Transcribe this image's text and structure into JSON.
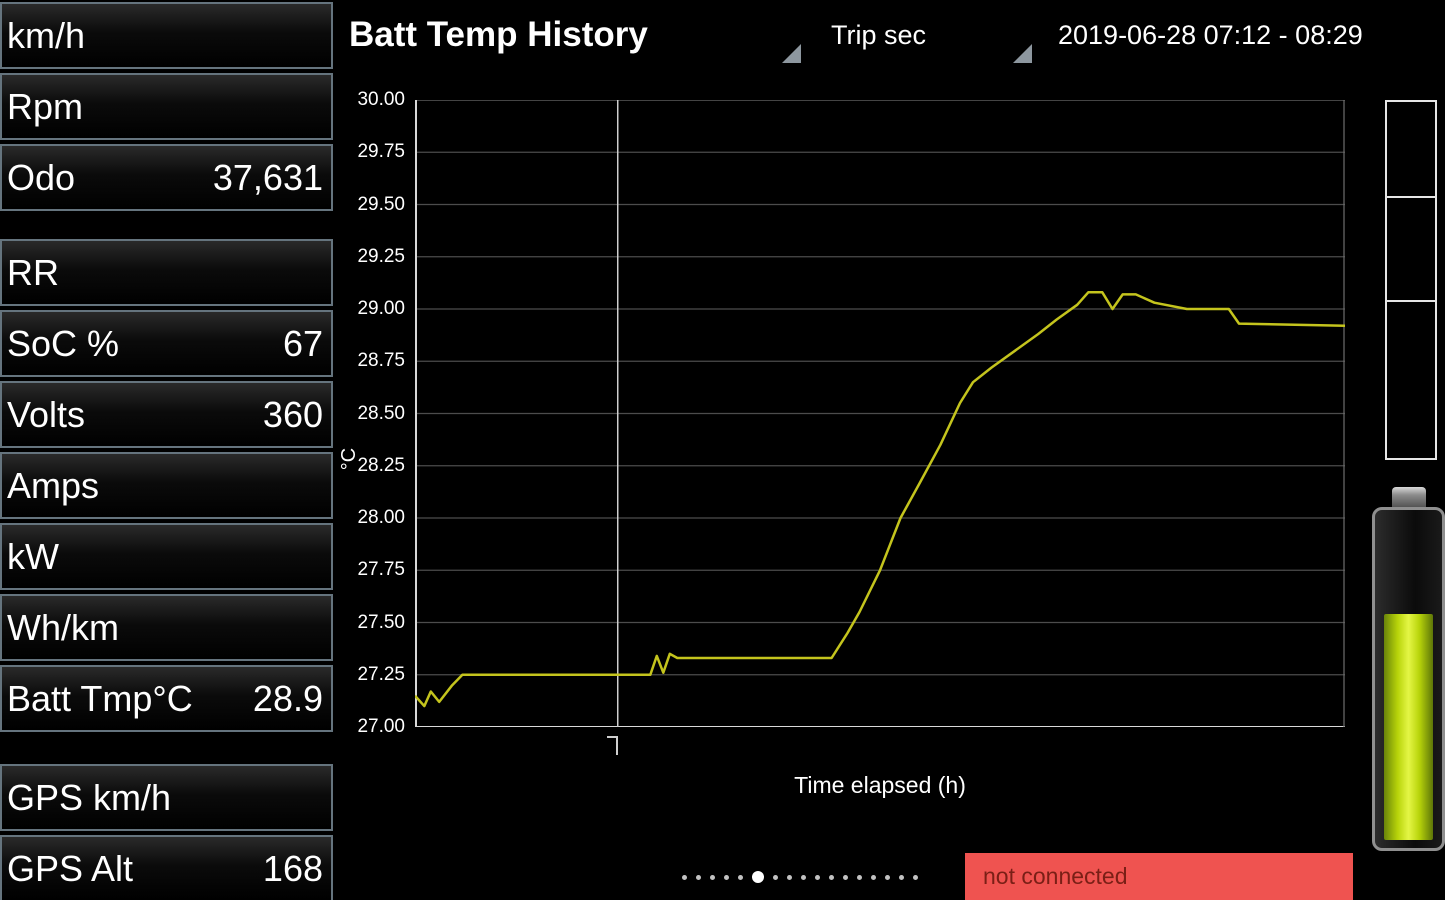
{
  "header": {
    "title": "Batt Temp History",
    "trip_label": "Trip sec",
    "date_range": "2019-06-28 07:12 - 08:29"
  },
  "sidebar": {
    "groups": [
      {
        "rows": [
          {
            "label": "km/h",
            "value": ""
          },
          {
            "label": "Rpm",
            "value": ""
          },
          {
            "label": "Odo",
            "value": "37,631"
          }
        ]
      },
      {
        "rows": [
          {
            "label": "RR",
            "value": ""
          },
          {
            "label": "SoC %",
            "value": "67"
          },
          {
            "label": "Volts",
            "value": "360"
          },
          {
            "label": "Amps",
            "value": ""
          },
          {
            "label": "kW",
            "value": ""
          },
          {
            "label": "Wh/km",
            "value": ""
          },
          {
            "label": "Batt Tmp°C",
            "value": "28.9"
          }
        ]
      },
      {
        "rows": [
          {
            "label": "GPS km/h",
            "value": ""
          },
          {
            "label": "GPS Alt",
            "value": "168"
          }
        ]
      }
    ]
  },
  "chart_data": {
    "type": "line",
    "title": "Batt Temp History",
    "xlabel": "Time elapsed (h)",
    "ylabel": "°C",
    "ylim": [
      27.0,
      30.0
    ],
    "ytick_step": 0.25,
    "yticks": [
      "30.00",
      "29.75",
      "29.50",
      "29.25",
      "29.00",
      "28.75",
      "28.50",
      "28.25",
      "28.00",
      "27.75",
      "27.50",
      "27.25",
      "27.00"
    ],
    "grid": true,
    "legend": "none",
    "line_color": "#c4c41d",
    "cursor_x_frac": 0.218,
    "series": [
      {
        "name": "Batt Temp",
        "points": [
          [
            0.0,
            27.15
          ],
          [
            0.01,
            27.1
          ],
          [
            0.017,
            27.17
          ],
          [
            0.026,
            27.12
          ],
          [
            0.04,
            27.2
          ],
          [
            0.051,
            27.25
          ],
          [
            0.253,
            27.25
          ],
          [
            0.26,
            27.34
          ],
          [
            0.267,
            27.26
          ],
          [
            0.274,
            27.35
          ],
          [
            0.282,
            27.33
          ],
          [
            0.448,
            27.33
          ],
          [
            0.465,
            27.45
          ],
          [
            0.478,
            27.55
          ],
          [
            0.5,
            27.75
          ],
          [
            0.522,
            28.0
          ],
          [
            0.543,
            28.17
          ],
          [
            0.565,
            28.35
          ],
          [
            0.586,
            28.55
          ],
          [
            0.6,
            28.65
          ],
          [
            0.62,
            28.72
          ],
          [
            0.645,
            28.8
          ],
          [
            0.67,
            28.88
          ],
          [
            0.69,
            28.95
          ],
          [
            0.712,
            29.02
          ],
          [
            0.724,
            29.08
          ],
          [
            0.739,
            29.08
          ],
          [
            0.75,
            29.0
          ],
          [
            0.761,
            29.07
          ],
          [
            0.775,
            29.07
          ],
          [
            0.795,
            29.03
          ],
          [
            0.83,
            29.0
          ],
          [
            0.875,
            29.0
          ],
          [
            0.886,
            28.93
          ],
          [
            1.0,
            28.92
          ]
        ]
      }
    ]
  },
  "gauge": {
    "segments": 3
  },
  "battery": {
    "soc_percent": 67,
    "fill_color": "#b8d40a"
  },
  "pager": {
    "dot_count": 17,
    "active_index": 5
  },
  "status_banner": {
    "text": "not connected",
    "background": "#ef5350",
    "text_color": "#7a1f16"
  },
  "colors": {
    "background": "#000000",
    "row_border": "#65747e",
    "grid_line": "#4c4c4c",
    "axis_line": "#d9d9d9",
    "series_line": "#c4c41d"
  }
}
